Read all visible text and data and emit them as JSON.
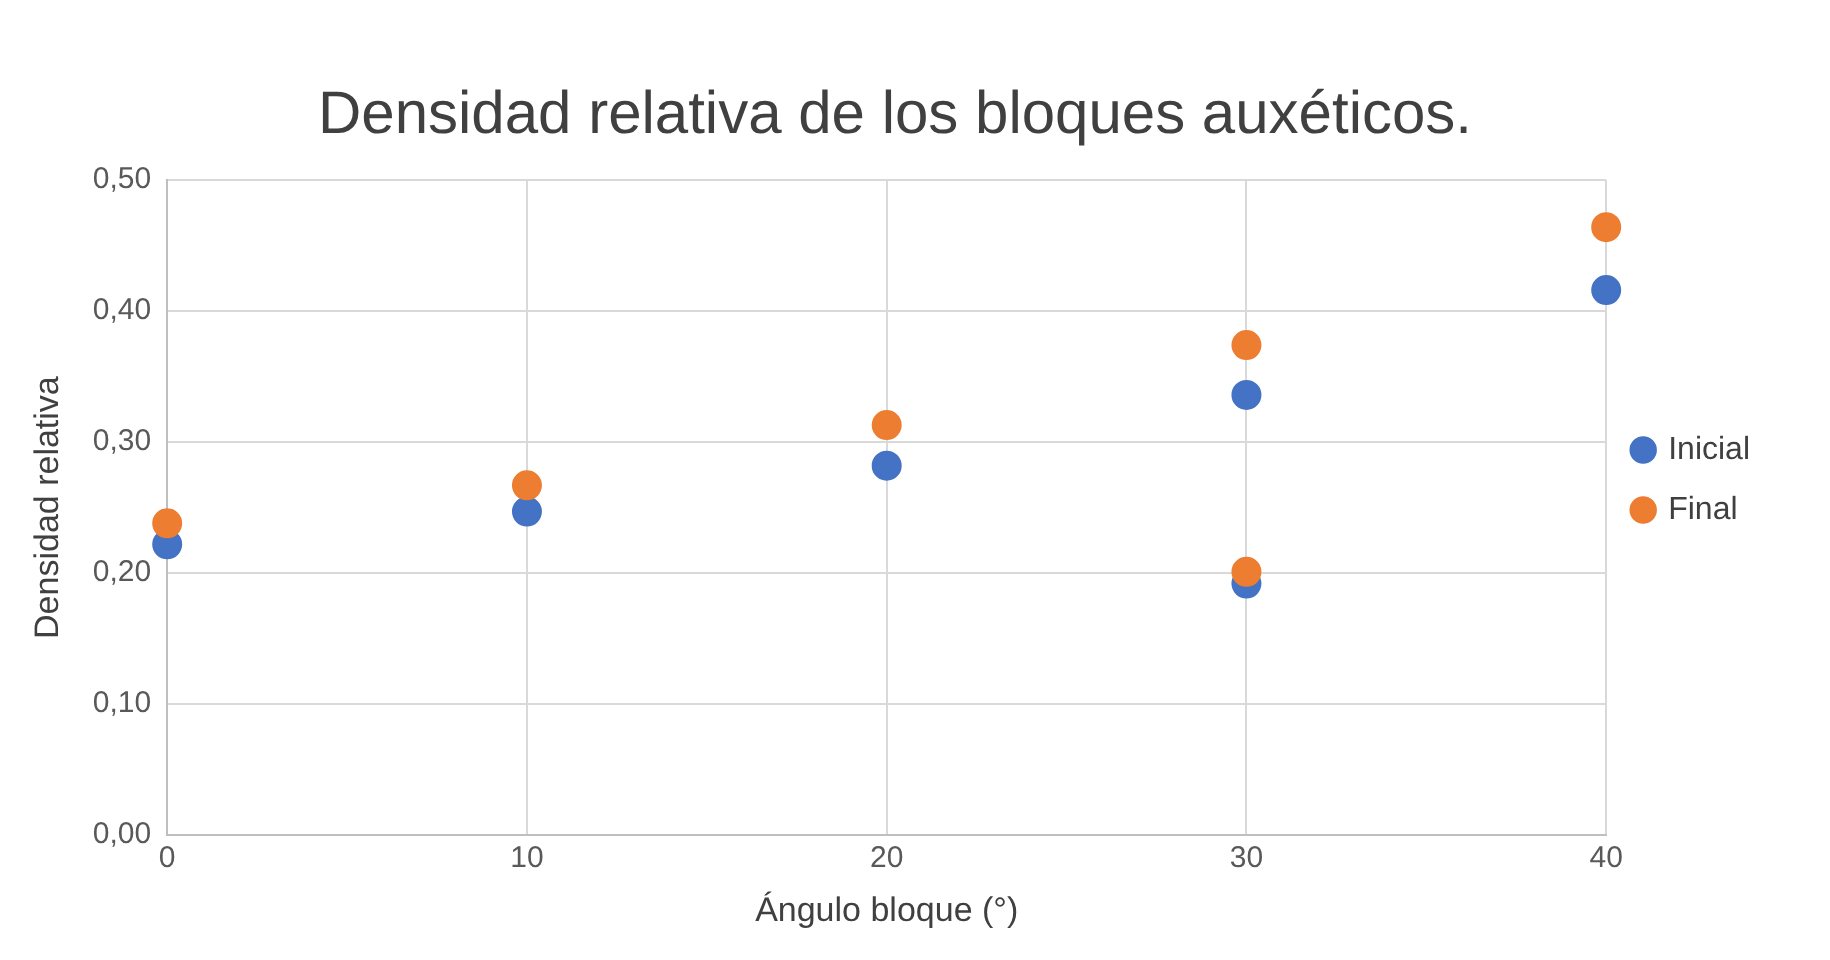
{
  "chart_data": {
    "type": "scatter",
    "title": "Densidad relativa de los bloques auxéticos.",
    "xlabel": "Ángulo bloque (°)",
    "ylabel": "Densidad relativa",
    "x": [
      0,
      10,
      20,
      30,
      30,
      40
    ],
    "series": [
      {
        "name": "Inicial",
        "color": "#4472c4",
        "values": [
          0.222,
          0.247,
          0.282,
          0.336,
          0.192,
          0.416
        ]
      },
      {
        "name": "Final",
        "color": "#ed7d31",
        "values": [
          0.238,
          0.267,
          0.313,
          0.374,
          0.201,
          0.464
        ]
      }
    ],
    "xlim": [
      0,
      40
    ],
    "xticks": [
      0,
      10,
      20,
      30,
      40
    ],
    "ylim": [
      0,
      0.5
    ],
    "yticks": [
      {
        "value": 0,
        "label": "0,00"
      },
      {
        "value": 0.1,
        "label": "0,10"
      },
      {
        "value": 0.2,
        "label": "0,20"
      },
      {
        "value": 0.3,
        "label": "0,30"
      },
      {
        "value": 0.4,
        "label": "0,40"
      },
      {
        "value": 0.5,
        "label": "0,50"
      }
    ],
    "grid": true,
    "legend": "right",
    "marker": "circle"
  }
}
